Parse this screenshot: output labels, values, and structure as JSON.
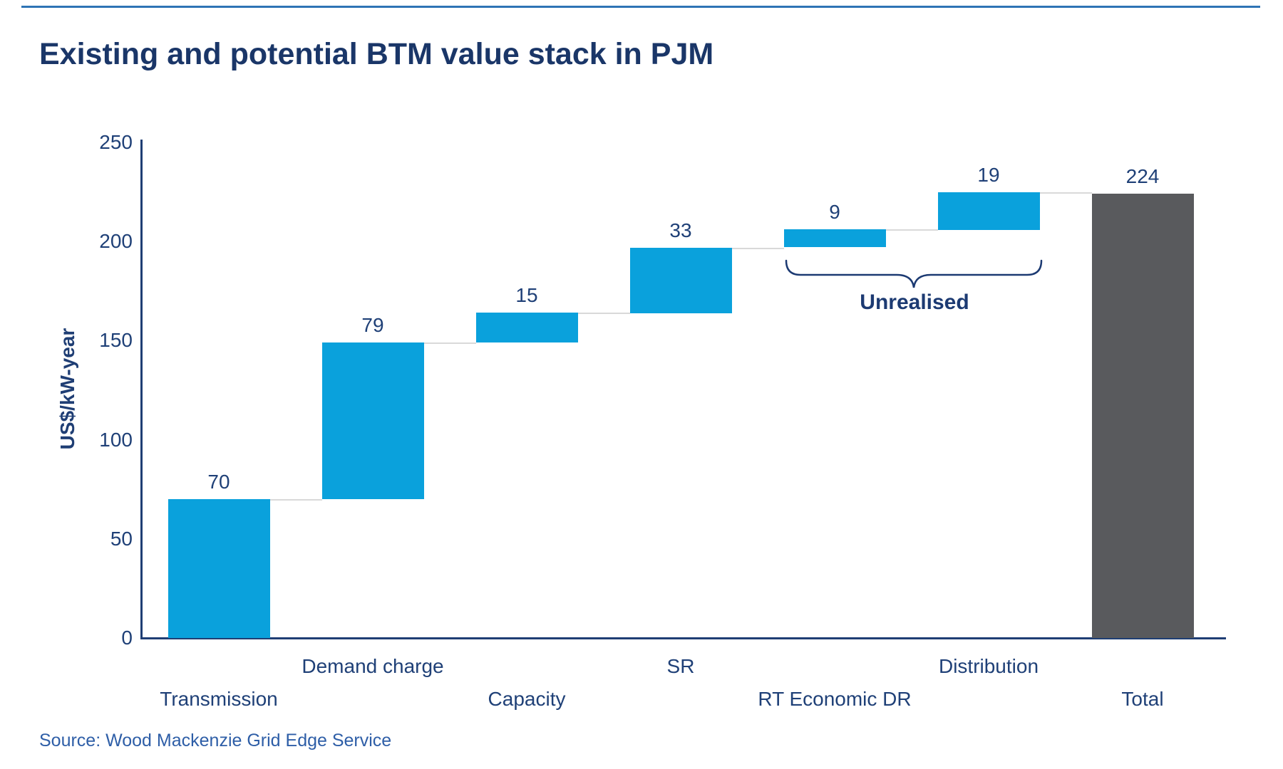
{
  "title": "Existing and potential BTM value stack in PJM",
  "source": "Source: Wood Mackenzie Grid Edge Service",
  "colors": {
    "accent_rule": "#2e74b5",
    "title_text": "#1a3668",
    "axis_line": "#1f3e74",
    "label_text": "#1f4077",
    "increment_bar": "#0aa1dc",
    "total_bar": "#595a5d",
    "connector_line": "#d9d9d9",
    "annotation_text": "#1c3a72",
    "source_text": "#2e5ea7"
  },
  "chart_data": {
    "type": "bar",
    "subtype": "waterfall",
    "title": "Existing and potential BTM value stack in PJM",
    "xlabel": "",
    "ylabel": "US$/kW-year",
    "ylim": [
      0,
      250
    ],
    "yticks": [
      0,
      50,
      100,
      150,
      200,
      250
    ],
    "grid": false,
    "legend": "none",
    "categories": [
      "Transmission",
      "Demand charge",
      "Capacity",
      "SR",
      "RT Economic DR",
      "Distribution",
      "Total"
    ],
    "bars": [
      {
        "category": "Transmission",
        "value": 70,
        "start": 0,
        "end": 70,
        "role": "increment",
        "label": "70",
        "label_row": "lower"
      },
      {
        "category": "Demand charge",
        "value": 79,
        "start": 70,
        "end": 149,
        "role": "increment",
        "label": "79",
        "label_row": "upper"
      },
      {
        "category": "Capacity",
        "value": 15,
        "start": 149,
        "end": 164,
        "role": "increment",
        "label": "15",
        "label_row": "lower"
      },
      {
        "category": "SR",
        "value": 33,
        "start": 164,
        "end": 197,
        "role": "increment",
        "label": "33",
        "label_row": "upper"
      },
      {
        "category": "RT Economic DR",
        "value": 9,
        "start": 197,
        "end": 206,
        "role": "increment",
        "label": "9",
        "label_row": "lower"
      },
      {
        "category": "Distribution",
        "value": 19,
        "start": 206,
        "end": 225,
        "role": "increment",
        "label": "19",
        "label_row": "upper"
      },
      {
        "category": "Total",
        "value": 224,
        "start": 0,
        "end": 224,
        "role": "total",
        "label": "224",
        "label_row": "lower"
      }
    ],
    "annotation": {
      "label": "Unrealised",
      "from_category": "RT Economic DR",
      "to_category": "Distribution"
    }
  }
}
